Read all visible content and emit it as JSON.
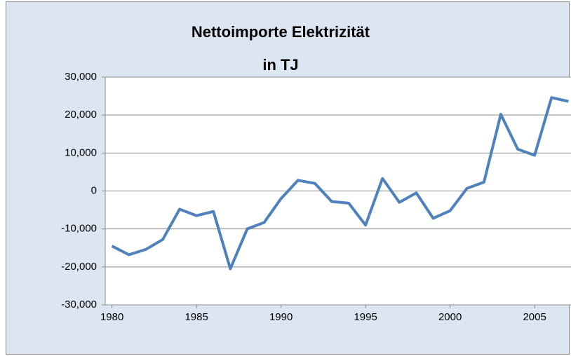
{
  "chart_data": {
    "type": "line",
    "title": [
      "Nettoimporte Elektrizität",
      "in TJ"
    ],
    "x": [
      1980,
      1981,
      1982,
      1983,
      1984,
      1985,
      1986,
      1987,
      1988,
      1989,
      1990,
      1991,
      1992,
      1993,
      1994,
      1995,
      1996,
      1997,
      1998,
      1999,
      2000,
      2001,
      2002,
      2003,
      2004,
      2005,
      2006,
      2007
    ],
    "series": [
      {
        "name": "Nettoimporte",
        "color": "#4f81bd",
        "values": [
          -14500,
          -16800,
          -15400,
          -12800,
          -4800,
          -6500,
          -5400,
          -20500,
          -10000,
          -8300,
          -2000,
          2800,
          2000,
          -2800,
          -3200,
          -9000,
          3300,
          -3000,
          -500,
          -7200,
          -5200,
          700,
          2300,
          20200,
          11000,
          9400,
          24600,
          23600
        ]
      }
    ],
    "xlim": [
      1979.6,
      2007.4
    ],
    "xticks": [
      1980,
      1985,
      1990,
      1995,
      2000,
      2005
    ],
    "ylim": [
      -30000,
      30000
    ],
    "yticks": [
      {
        "value": -30000,
        "label": "-30,000"
      },
      {
        "value": -20000,
        "label": "-20,000"
      },
      {
        "value": -10000,
        "label": "-10,000"
      },
      0,
      {
        "value": 10000,
        "label": "10,000"
      },
      {
        "value": 20000,
        "label": "20,000"
      },
      {
        "value": 30000,
        "label": "30,000"
      }
    ],
    "grid": true
  }
}
